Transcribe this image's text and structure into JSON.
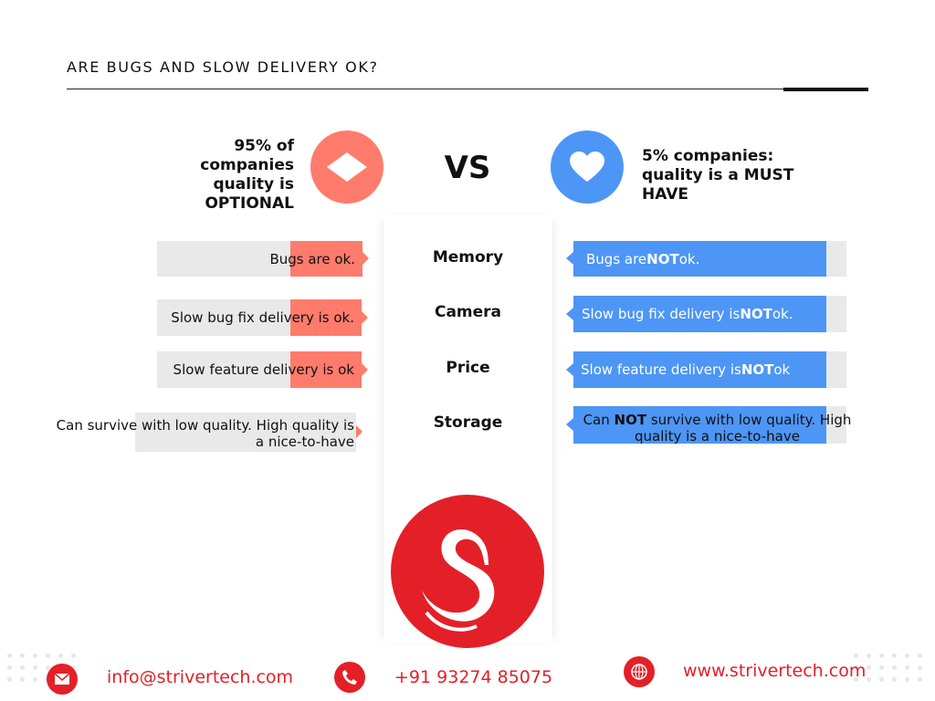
{
  "title": "ARE BUGS AND SLOW DELIVERY OK?",
  "left": {
    "heading": [
      "95% of",
      "companies",
      "quality is",
      "OPTIONAL"
    ],
    "icon": "diamond-icon",
    "color": "#FF7B6B",
    "rows": [
      "Bugs are ok.",
      "Slow bug fix delivery is ok.",
      "Slow feature delivery is ok",
      "Can survive with low quality. High quality is a nice-to-have"
    ]
  },
  "vs": "VS",
  "right": {
    "heading": [
      "5% companies:",
      "quality is a MUST",
      "HAVE"
    ],
    "icon": "heart-icon",
    "color": "#4D96F5",
    "rows": [
      {
        "pre": "Bugs are ",
        "bold": "NOT",
        "post": " ok."
      },
      {
        "pre": "Slow bug fix delivery is ",
        "bold": "NOT",
        "post": " ok."
      },
      {
        "pre": "Slow feature delivery is ",
        "bold": "NOT",
        "post": " ok"
      },
      {
        "pre": "Can ",
        "bold": "NOT",
        "post": " survive with low quality. High quality is a nice-to-have"
      }
    ]
  },
  "center_labels": [
    "Memory",
    "Camera",
    "Price",
    "Storage"
  ],
  "logo": {
    "icon": "swan-logo-icon",
    "color": "#E32028"
  },
  "footer": {
    "email": "info@strivertech.com",
    "phone": "+91 93274 85075",
    "website": "www.strivertech.com"
  }
}
